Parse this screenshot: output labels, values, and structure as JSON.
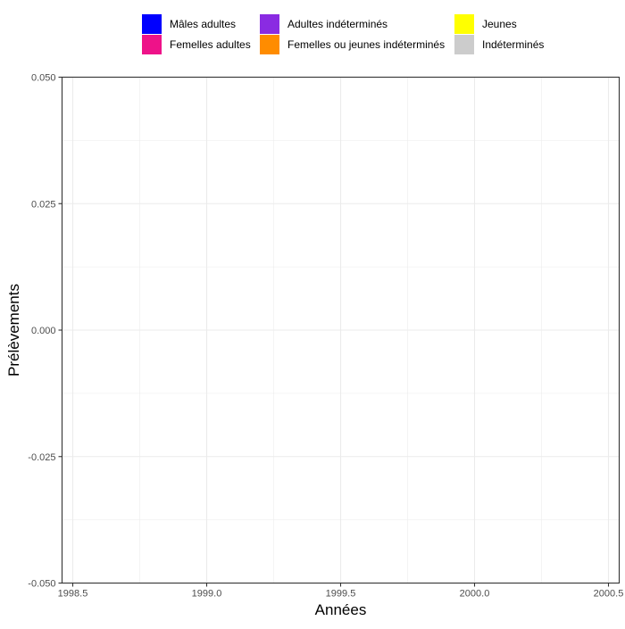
{
  "chart_data": {
    "type": "bar",
    "title": "",
    "xlabel": "Années",
    "ylabel": "Prélèvements",
    "xlim": [
      1998.46,
      2000.54
    ],
    "ylim": [
      -0.05,
      0.05
    ],
    "x_ticks": [
      {
        "value": 1998.5,
        "label": "1998.5"
      },
      {
        "value": 1999.0,
        "label": "1999.0"
      },
      {
        "value": 1999.5,
        "label": "1999.5"
      },
      {
        "value": 2000.0,
        "label": "2000.0"
      },
      {
        "value": 2000.5,
        "label": "2000.5"
      }
    ],
    "x_minor_ticks": [
      1998.75,
      1999.25,
      1999.75,
      2000.25
    ],
    "y_ticks": [
      {
        "value": 0.05,
        "label": "0.050"
      },
      {
        "value": 0.025,
        "label": "0.025"
      },
      {
        "value": 0.0,
        "label": "0.000"
      },
      {
        "value": -0.025,
        "label": "-0.025"
      },
      {
        "value": -0.05,
        "label": "-0.050"
      }
    ],
    "y_minor_ticks": [
      0.0375,
      0.0125,
      -0.0125,
      -0.0375
    ],
    "grid": true,
    "legend_position": "top",
    "legend": [
      {
        "label": "Mâles adultes",
        "color": "#0000ff"
      },
      {
        "label": "Femelles adultes",
        "color": "#ee1289"
      },
      {
        "label": "Adultes indéterminés",
        "color": "#8a2be2"
      },
      {
        "label": "Femelles ou jeunes indéterminés",
        "color": "#ff8c00"
      },
      {
        "label": "Jeunes",
        "color": "#ffff00"
      },
      {
        "label": "Indéterminés",
        "color": "#cccccc"
      }
    ],
    "series": []
  }
}
